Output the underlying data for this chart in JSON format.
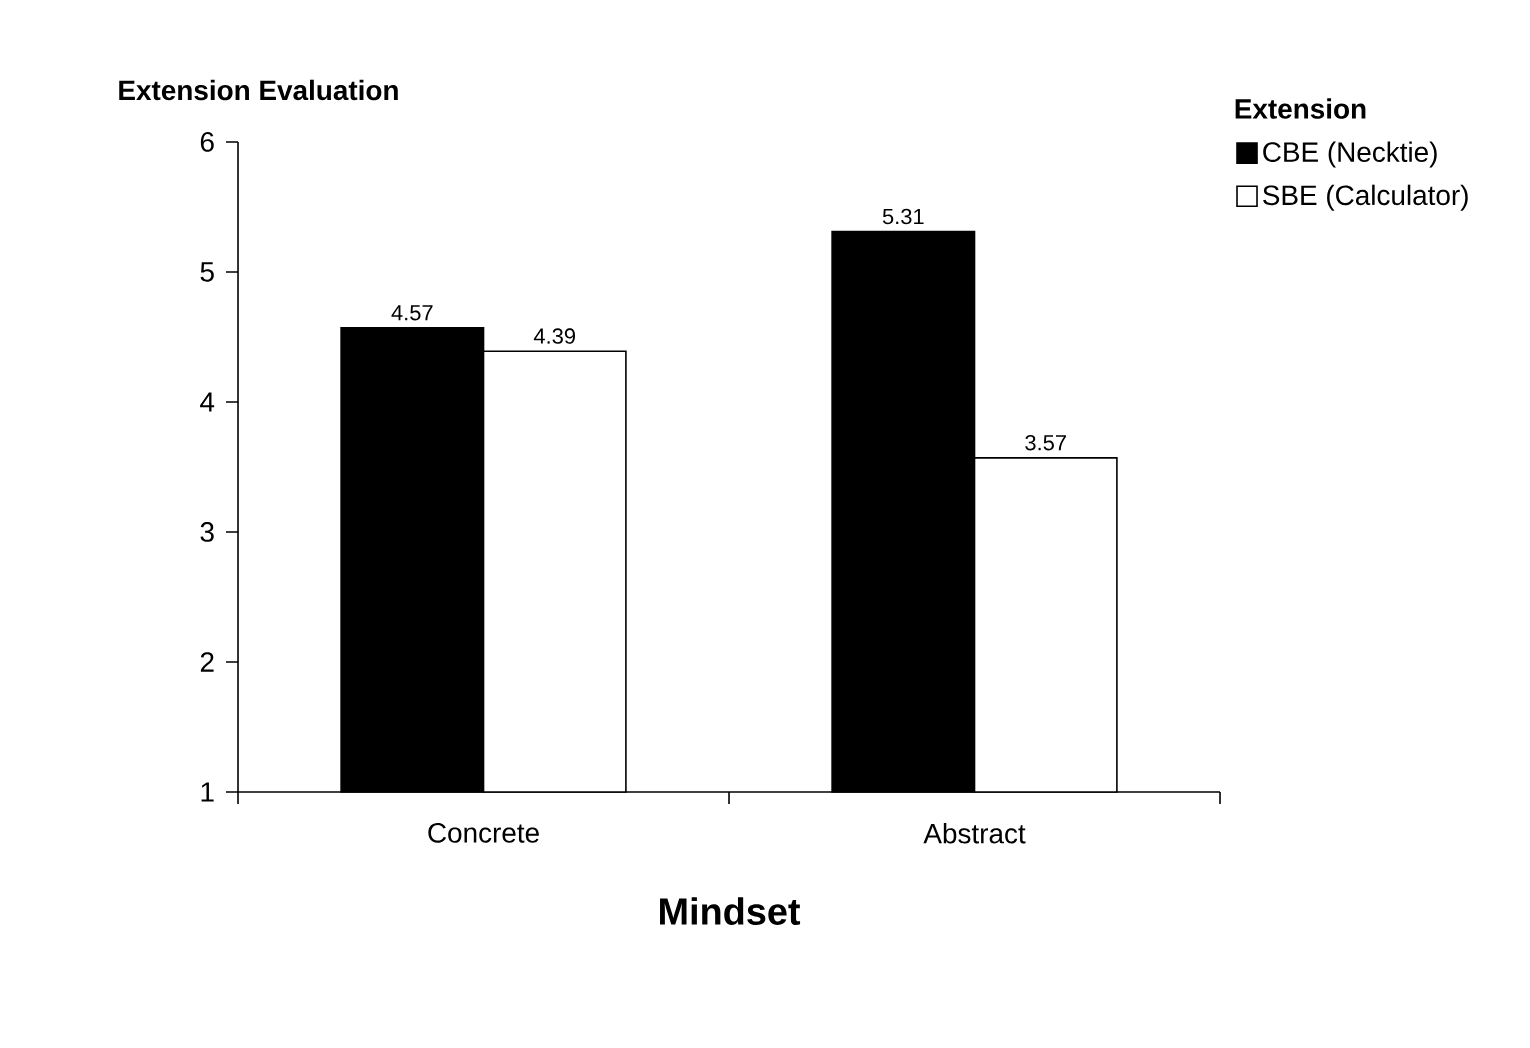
{
  "chart_data": {
    "type": "bar",
    "ylabel": "Extension Evaluation",
    "xlabel": "Mindset",
    "legend_title": "Extension",
    "categories": [
      "Concrete",
      "Abstract"
    ],
    "series": [
      {
        "name": "CBE (Necktie)",
        "color": "#000000",
        "values": [
          4.57,
          5.31
        ]
      },
      {
        "name": "SBE (Calculator)",
        "color": "#ffffff",
        "values": [
          4.39,
          3.57
        ]
      }
    ],
    "ylim": [
      1,
      6
    ],
    "yticks": [
      1,
      2,
      3,
      4,
      5,
      6
    ],
    "data_labels": true,
    "grid": false,
    "legend": "top right"
  }
}
